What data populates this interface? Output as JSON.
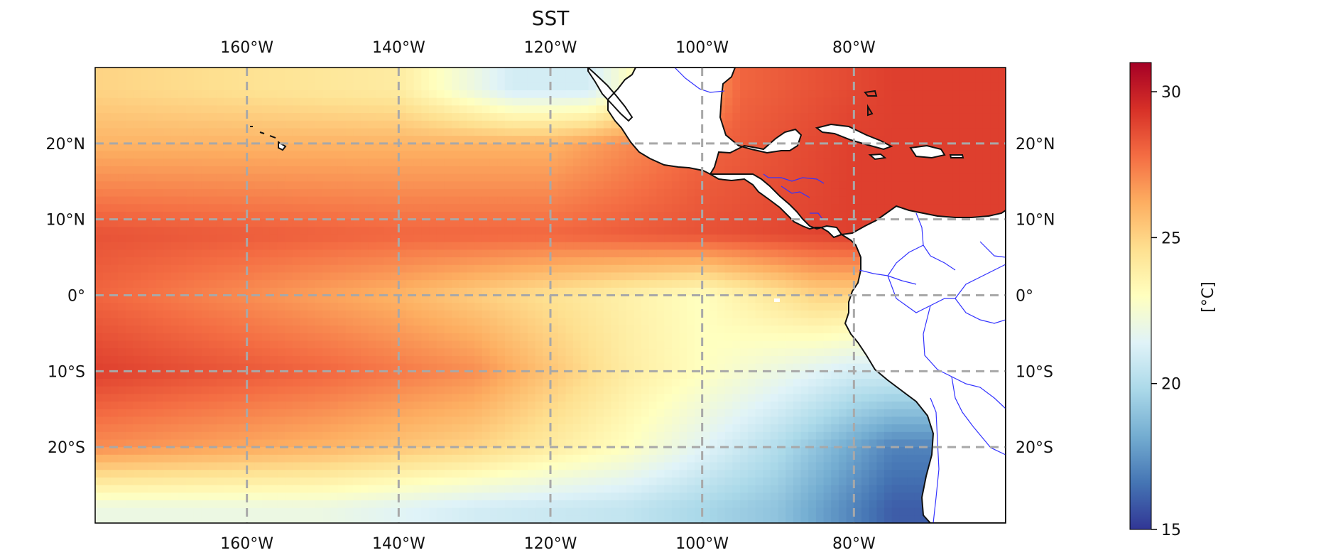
{
  "title": "SST",
  "map": {
    "lon_range": [
      -180,
      -60
    ],
    "lat_range": [
      -30,
      30
    ],
    "gridlines": {
      "lons": [
        -160,
        -140,
        -120,
        -100,
        -80
      ],
      "lats": [
        20,
        10,
        0,
        -10,
        -20
      ],
      "style": "dashed gray",
      "lon_labels": [
        "160°W",
        "140°W",
        "120°W",
        "100°W",
        "80°W"
      ],
      "lat_labels": [
        "20°N",
        "10°N",
        "0°",
        "10°S",
        "20°S"
      ]
    },
    "features": [
      "coastlines (black)",
      "country borders (blue)",
      "land (white)"
    ]
  },
  "colorbar": {
    "label": "[°C]",
    "min": 15,
    "max": 31,
    "ticks": [
      15,
      20,
      25,
      30
    ],
    "tick_labels": [
      "15",
      "20",
      "25",
      "30"
    ],
    "colormap": "RdYlBu_r"
  },
  "chart_data": {
    "type": "heatmap",
    "title": "SST",
    "variable": "sea surface temperature",
    "units": "°C",
    "x_axis": "longitude",
    "y_axis": "latitude",
    "xlim": [
      -180,
      -60
    ],
    "ylim": [
      -30,
      30
    ],
    "value_range": [
      15,
      31
    ],
    "zonal_profile_samples": [
      {
        "lat": 27,
        "lon_vs_sst": [
          [
            -180,
            25
          ],
          [
            -140,
            24
          ],
          [
            -125,
            21
          ],
          [
            -115,
            21
          ],
          [
            -95,
            28
          ],
          [
            -75,
            29
          ]
        ]
      },
      {
        "lat": 20,
        "lon_vs_sst": [
          [
            -180,
            26
          ],
          [
            -140,
            26
          ],
          [
            -120,
            26
          ],
          [
            -100,
            28
          ],
          [
            -80,
            29
          ]
        ]
      },
      {
        "lat": 8,
        "lon_vs_sst": [
          [
            -180,
            28.5
          ],
          [
            -140,
            28
          ],
          [
            -120,
            28
          ],
          [
            -100,
            28.5
          ],
          [
            -80,
            29
          ]
        ]
      },
      {
        "lat": 0,
        "lon_vs_sst": [
          [
            -180,
            28
          ],
          [
            -140,
            26
          ],
          [
            -120,
            24.5
          ],
          [
            -100,
            23
          ],
          [
            -85,
            25
          ]
        ]
      },
      {
        "lat": -10,
        "lon_vs_sst": [
          [
            -180,
            29
          ],
          [
            -150,
            28
          ],
          [
            -130,
            27
          ],
          [
            -110,
            24
          ],
          [
            -90,
            22
          ],
          [
            -80,
            21
          ]
        ]
      },
      {
        "lat": -20,
        "lon_vs_sst": [
          [
            -180,
            27
          ],
          [
            -150,
            26
          ],
          [
            -130,
            25
          ],
          [
            -110,
            23
          ],
          [
            -90,
            20
          ],
          [
            -75,
            17
          ]
        ]
      },
      {
        "lat": -28,
        "lon_vs_sst": [
          [
            -180,
            22
          ],
          [
            -150,
            22
          ],
          [
            -130,
            21
          ],
          [
            -110,
            20.5
          ],
          [
            -90,
            19
          ],
          [
            -75,
            16
          ]
        ]
      }
    ]
  }
}
